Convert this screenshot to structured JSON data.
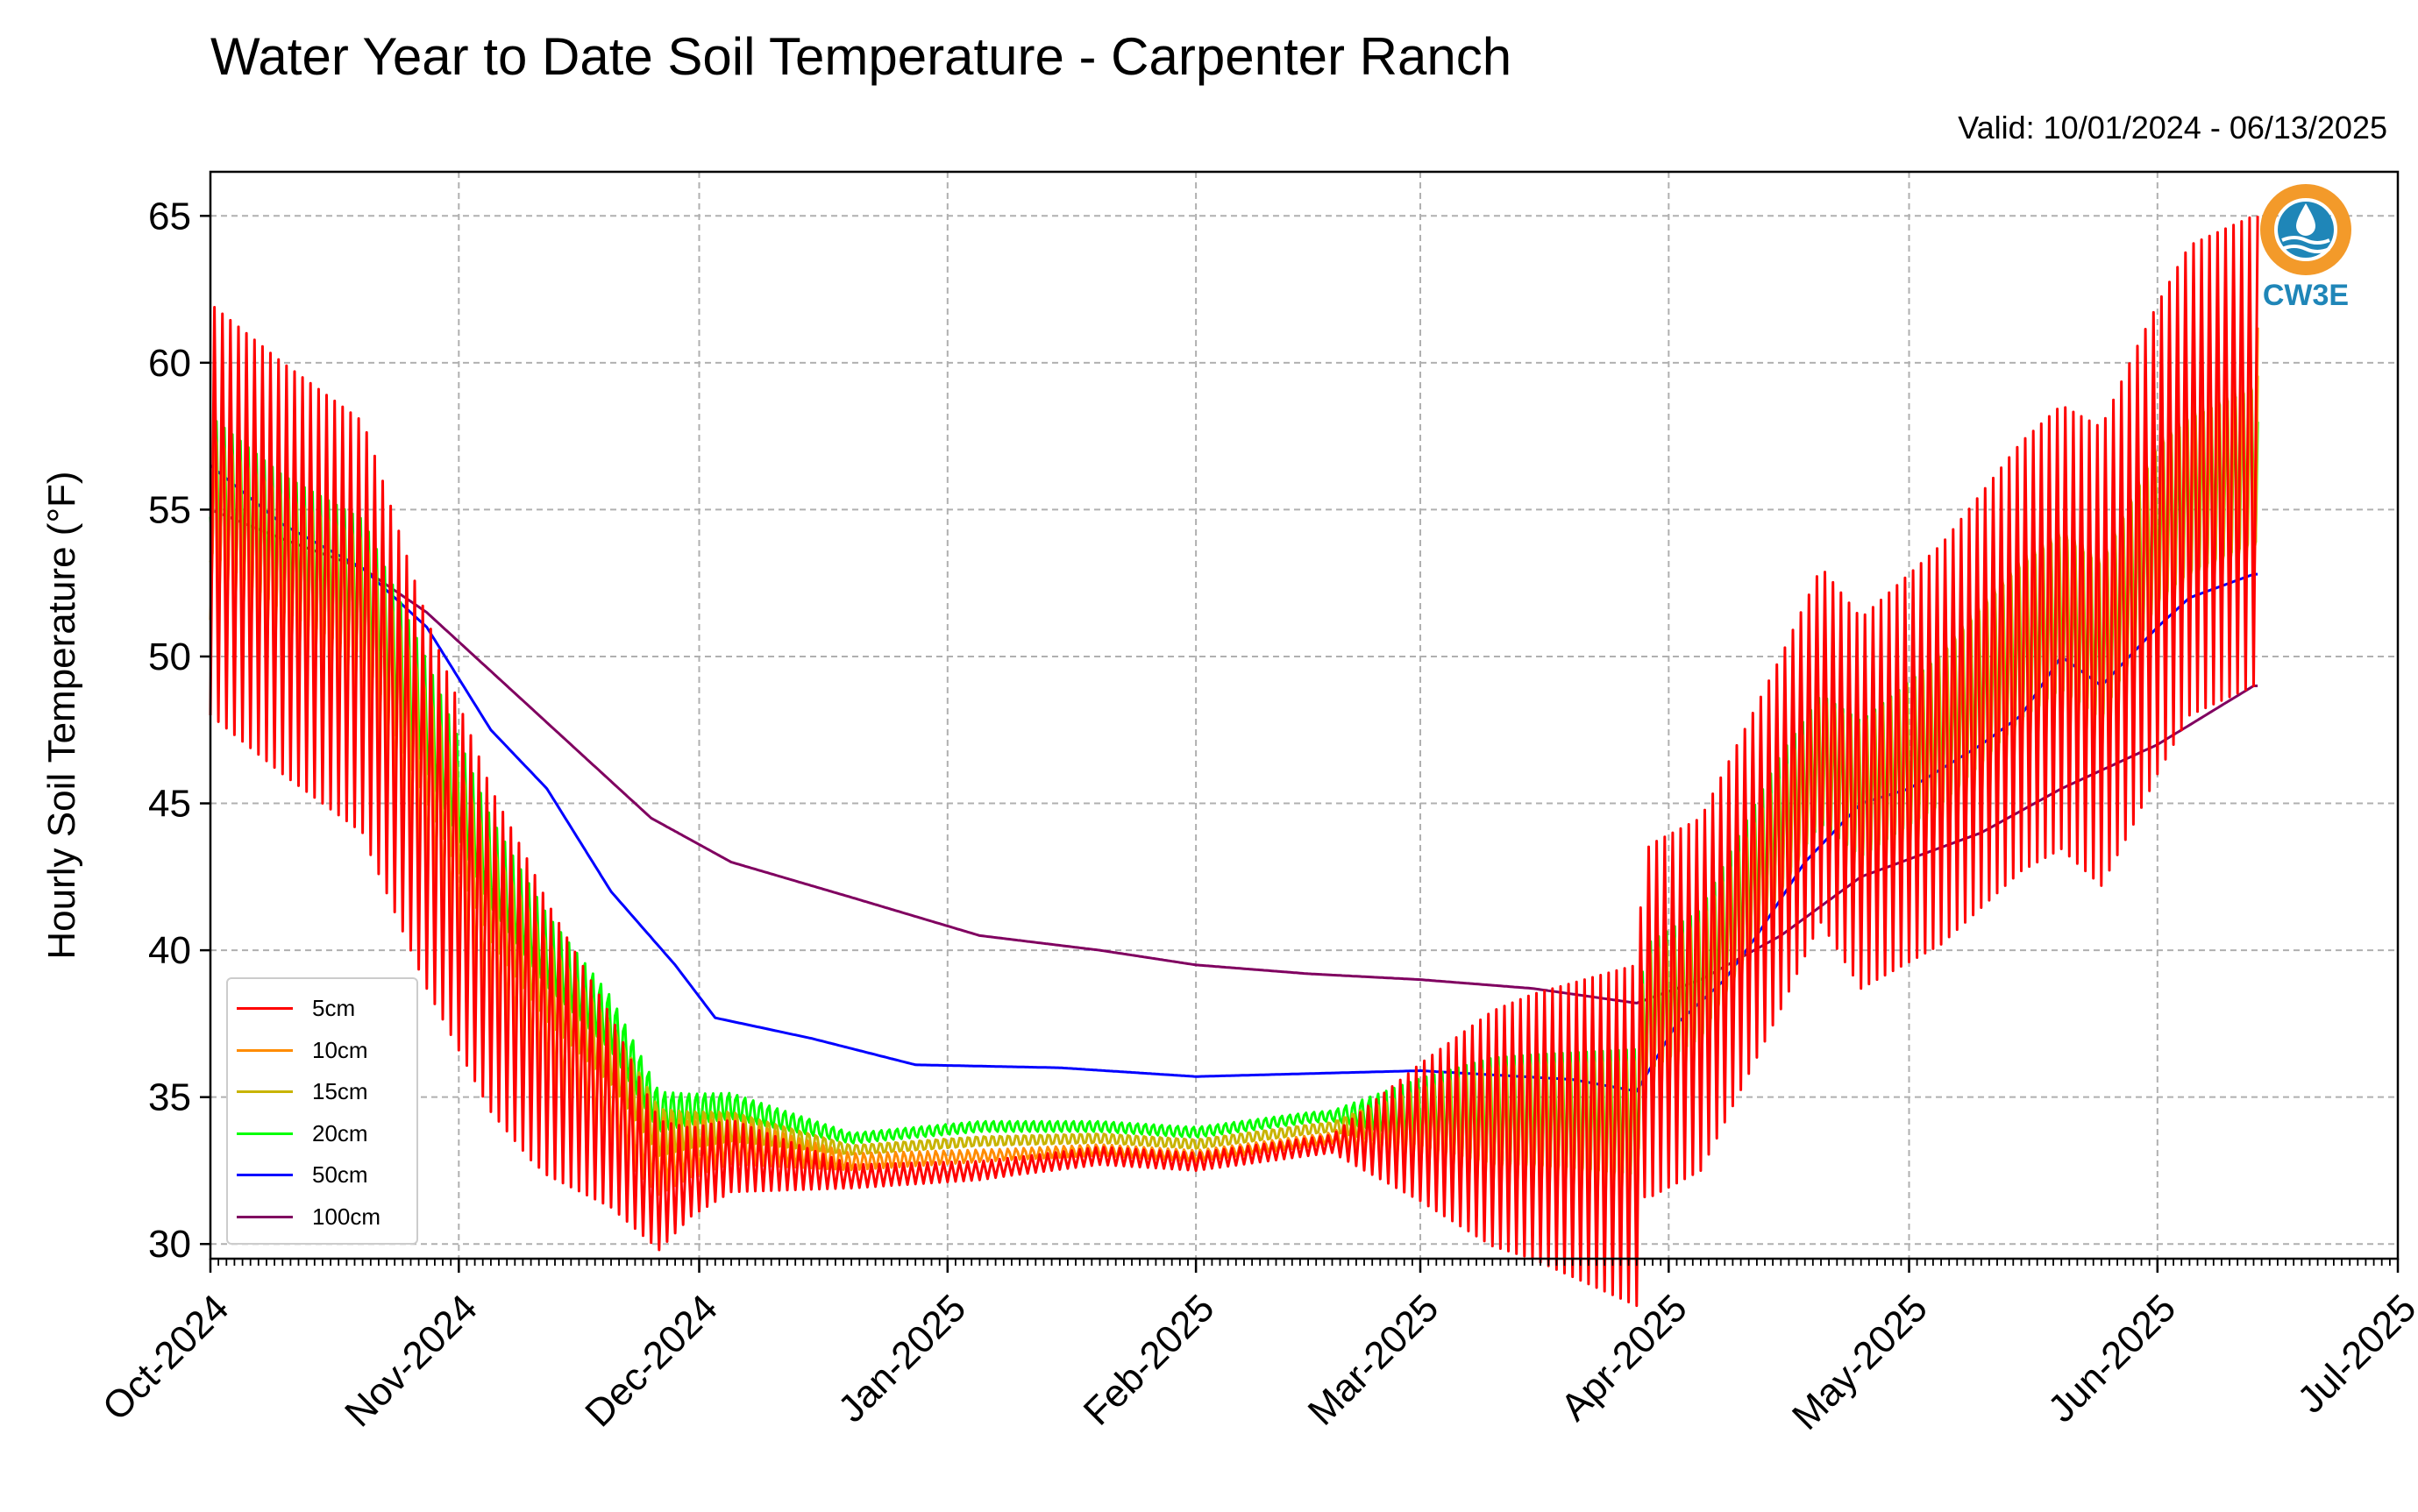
{
  "title": "Water Year to Date Soil Temperature - Carpenter Ranch",
  "subtitle": "Valid: 10/01/2024 - 06/13/2025",
  "logo": {
    "text": "CW3E",
    "icon": "cw3e-logo-icon",
    "ring_color": "#f39a2a",
    "water_color": "#1f86b8"
  },
  "chart_data": {
    "type": "line",
    "ylabel": "Hourly Soil Temperature (°F)",
    "ylim": [
      29.5,
      66.5
    ],
    "yticks": [
      30,
      35,
      40,
      45,
      50,
      55,
      60,
      65
    ],
    "xlim": [
      "2024-10-01",
      "2025-07-01"
    ],
    "xticks": [
      {
        "date": "2024-10-01",
        "label": "Oct-2024"
      },
      {
        "date": "2024-11-01",
        "label": "Nov-2024"
      },
      {
        "date": "2024-12-01",
        "label": "Dec-2024"
      },
      {
        "date": "2025-01-01",
        "label": "Jan-2025"
      },
      {
        "date": "2025-02-01",
        "label": "Feb-2025"
      },
      {
        "date": "2025-03-01",
        "label": "Mar-2025"
      },
      {
        "date": "2025-04-01",
        "label": "Apr-2025"
      },
      {
        "date": "2025-05-01",
        "label": "May-2025"
      },
      {
        "date": "2025-06-01",
        "label": "Jun-2025"
      },
      {
        "date": "2025-07-01",
        "label": "Jul-2025"
      }
    ],
    "grid": true,
    "legend_position": "bottom-left",
    "series": [
      {
        "name": "5cm",
        "color": "#ff0000",
        "amplitude": [
          7,
          7,
          5,
          1.5,
          0.4,
          0.3,
          0.3,
          0.3,
          4,
          6,
          6,
          7,
          8
        ],
        "points": [
          [
            "2024-10-01",
            55
          ],
          [
            "2024-10-10",
            53
          ],
          [
            "2024-10-20",
            51
          ],
          [
            "2024-10-28",
            45
          ],
          [
            "2024-11-05",
            40
          ],
          [
            "2024-11-12",
            37
          ],
          [
            "2024-11-20",
            34.5
          ],
          [
            "2024-11-26",
            32
          ],
          [
            "2024-12-05",
            33
          ],
          [
            "2024-12-20",
            32.3
          ],
          [
            "2025-01-05",
            32.5
          ],
          [
            "2025-01-20",
            33
          ],
          [
            "2025-02-01",
            32.8
          ],
          [
            "2025-02-15",
            33.3
          ],
          [
            "2025-03-01",
            33.8
          ],
          [
            "2025-03-15",
            34
          ],
          [
            "2025-03-28",
            33.7
          ],
          [
            "2025-03-29",
            37.5
          ],
          [
            "2025-04-05",
            38.5
          ],
          [
            "2025-04-15",
            44
          ],
          [
            "2025-04-20",
            47
          ],
          [
            "2025-04-25",
            45
          ],
          [
            "2025-05-05",
            47
          ],
          [
            "2025-05-15",
            50
          ],
          [
            "2025-05-20",
            51
          ],
          [
            "2025-05-25",
            50
          ],
          [
            "2025-06-01",
            54
          ],
          [
            "2025-06-05",
            56
          ],
          [
            "2025-06-13",
            57
          ]
        ]
      },
      {
        "name": "10cm",
        "color": "#ff8c00",
        "amplitude": [
          4,
          4,
          3,
          1,
          0.3,
          0.2,
          0.2,
          0.2,
          3,
          4,
          4,
          5,
          5
        ],
        "points": [
          [
            "2024-10-01",
            55
          ],
          [
            "2024-10-10",
            53
          ],
          [
            "2024-10-20",
            51.5
          ],
          [
            "2024-10-28",
            46
          ],
          [
            "2024-11-05",
            41
          ],
          [
            "2024-11-12",
            38
          ],
          [
            "2024-11-20",
            35.2
          ],
          [
            "2024-11-26",
            33
          ],
          [
            "2024-12-05",
            33.5
          ],
          [
            "2024-12-20",
            32.8
          ],
          [
            "2025-01-05",
            33
          ],
          [
            "2025-01-20",
            33.2
          ],
          [
            "2025-02-01",
            33
          ],
          [
            "2025-02-15",
            33.5
          ],
          [
            "2025-03-01",
            34
          ],
          [
            "2025-03-15",
            34.1
          ],
          [
            "2025-03-28",
            34
          ],
          [
            "2025-03-29",
            37.5
          ],
          [
            "2025-04-05",
            38.8
          ],
          [
            "2025-04-15",
            44
          ],
          [
            "2025-04-20",
            46.5
          ],
          [
            "2025-04-25",
            45
          ],
          [
            "2025-05-05",
            47
          ],
          [
            "2025-05-15",
            50
          ],
          [
            "2025-05-20",
            51
          ],
          [
            "2025-05-25",
            50
          ],
          [
            "2025-06-01",
            54
          ],
          [
            "2025-06-05",
            55.5
          ],
          [
            "2025-06-13",
            56.5
          ]
        ]
      },
      {
        "name": "15cm",
        "color": "#c8b400",
        "amplitude": [
          3,
          3,
          2,
          0.8,
          0.2,
          0.2,
          0.2,
          0.2,
          2.5,
          3,
          3,
          4,
          4
        ],
        "points": [
          [
            "2024-10-01",
            55.5
          ],
          [
            "2024-10-10",
            53.5
          ],
          [
            "2024-10-20",
            52
          ],
          [
            "2024-10-28",
            47
          ],
          [
            "2024-11-05",
            42
          ],
          [
            "2024-11-12",
            39
          ],
          [
            "2024-11-20",
            36.5
          ],
          [
            "2024-11-26",
            33.8
          ],
          [
            "2024-12-05",
            34
          ],
          [
            "2024-12-20",
            33.2
          ],
          [
            "2025-01-05",
            33.5
          ],
          [
            "2025-01-20",
            33.6
          ],
          [
            "2025-02-01",
            33.4
          ],
          [
            "2025-02-15",
            33.9
          ],
          [
            "2025-03-01",
            34.3
          ],
          [
            "2025-03-15",
            34.4
          ],
          [
            "2025-03-28",
            34.3
          ],
          [
            "2025-03-29",
            37.8
          ],
          [
            "2025-04-05",
            39
          ],
          [
            "2025-04-15",
            44
          ],
          [
            "2025-04-20",
            46.5
          ],
          [
            "2025-04-25",
            45.5
          ],
          [
            "2025-05-05",
            47.5
          ],
          [
            "2025-05-15",
            50.5
          ],
          [
            "2025-05-20",
            51.5
          ],
          [
            "2025-05-25",
            50.5
          ],
          [
            "2025-06-01",
            54.5
          ],
          [
            "2025-06-05",
            55.5
          ],
          [
            "2025-06-13",
            56.5
          ]
        ]
      },
      {
        "name": "20cm",
        "color": "#00ff00",
        "amplitude": [
          2.5,
          2.5,
          1.5,
          0.6,
          0.2,
          0.2,
          0.2,
          0.2,
          2,
          2.5,
          2.5,
          3,
          3
        ],
        "points": [
          [
            "2024-10-01",
            56
          ],
          [
            "2024-10-10",
            54
          ],
          [
            "2024-10-20",
            52.5
          ],
          [
            "2024-10-28",
            48
          ],
          [
            "2024-11-05",
            43
          ],
          [
            "2024-11-12",
            40
          ],
          [
            "2024-11-20",
            37.5
          ],
          [
            "2024-11-26",
            34.5
          ],
          [
            "2024-12-05",
            34.7
          ],
          [
            "2024-12-20",
            33.6
          ],
          [
            "2025-01-05",
            34
          ],
          [
            "2025-01-20",
            34
          ],
          [
            "2025-02-01",
            33.8
          ],
          [
            "2025-02-15",
            34.3
          ],
          [
            "2025-03-01",
            34.6
          ],
          [
            "2025-03-15",
            34.6
          ],
          [
            "2025-03-28",
            34.5
          ],
          [
            "2025-03-29",
            38
          ],
          [
            "2025-04-05",
            39.2
          ],
          [
            "2025-04-15",
            44.5
          ],
          [
            "2025-04-20",
            46.5
          ],
          [
            "2025-04-25",
            45.5
          ],
          [
            "2025-05-05",
            47.5
          ],
          [
            "2025-05-15",
            50.5
          ],
          [
            "2025-05-20",
            51.5
          ],
          [
            "2025-05-25",
            50.5
          ],
          [
            "2025-06-01",
            54.5
          ],
          [
            "2025-06-05",
            55.5
          ],
          [
            "2025-06-13",
            56.5
          ]
        ]
      },
      {
        "name": "50cm",
        "color": "#0000ff",
        "amplitude": [
          0,
          0,
          0,
          0,
          0,
          0,
          0,
          0,
          0,
          0,
          0,
          0,
          0
        ],
        "points": [
          [
            "2024-10-01",
            56.5
          ],
          [
            "2024-10-10",
            54.5
          ],
          [
            "2024-10-20",
            53
          ],
          [
            "2024-10-28",
            51
          ],
          [
            "2024-11-05",
            47.5
          ],
          [
            "2024-11-12",
            45.5
          ],
          [
            "2024-11-20",
            42
          ],
          [
            "2024-11-28",
            39.5
          ],
          [
            "2024-12-03",
            37.7
          ],
          [
            "2024-12-15",
            37
          ],
          [
            "2024-12-28",
            36.1
          ],
          [
            "2025-01-15",
            36
          ],
          [
            "2025-02-01",
            35.7
          ],
          [
            "2025-03-01",
            35.9
          ],
          [
            "2025-03-20",
            35.6
          ],
          [
            "2025-03-28",
            35.2
          ],
          [
            "2025-04-02",
            37.5
          ],
          [
            "2025-04-08",
            39
          ],
          [
            "2025-04-12",
            40.5
          ],
          [
            "2025-04-18",
            43
          ],
          [
            "2025-04-25",
            45
          ],
          [
            "2025-05-01",
            45.5
          ],
          [
            "2025-05-10",
            47
          ],
          [
            "2025-05-15",
            48
          ],
          [
            "2025-05-20",
            50
          ],
          [
            "2025-05-25",
            49
          ],
          [
            "2025-06-01",
            51
          ],
          [
            "2025-06-05",
            52
          ],
          [
            "2025-06-13",
            52.8
          ]
        ]
      },
      {
        "name": "100cm",
        "color": "#800060",
        "amplitude": [
          0,
          0,
          0,
          0,
          0,
          0,
          0,
          0,
          0,
          0,
          0,
          0,
          0
        ],
        "points": [
          [
            "2024-10-01",
            55
          ],
          [
            "2024-10-10",
            54
          ],
          [
            "2024-10-20",
            53
          ],
          [
            "2024-10-28",
            51.5
          ],
          [
            "2024-11-05",
            49.5
          ],
          [
            "2024-11-15",
            47
          ],
          [
            "2024-11-25",
            44.5
          ],
          [
            "2024-12-05",
            43
          ],
          [
            "2024-12-20",
            41.8
          ],
          [
            "2025-01-05",
            40.5
          ],
          [
            "2025-01-20",
            40
          ],
          [
            "2025-02-01",
            39.5
          ],
          [
            "2025-02-15",
            39.2
          ],
          [
            "2025-03-01",
            39
          ],
          [
            "2025-03-15",
            38.7
          ],
          [
            "2025-03-28",
            38.2
          ],
          [
            "2025-04-05",
            39
          ],
          [
            "2025-04-15",
            40.5
          ],
          [
            "2025-04-25",
            42.5
          ],
          [
            "2025-05-10",
            44
          ],
          [
            "2025-05-20",
            45.5
          ],
          [
            "2025-06-01",
            47
          ],
          [
            "2025-06-13",
            49
          ]
        ]
      }
    ]
  }
}
